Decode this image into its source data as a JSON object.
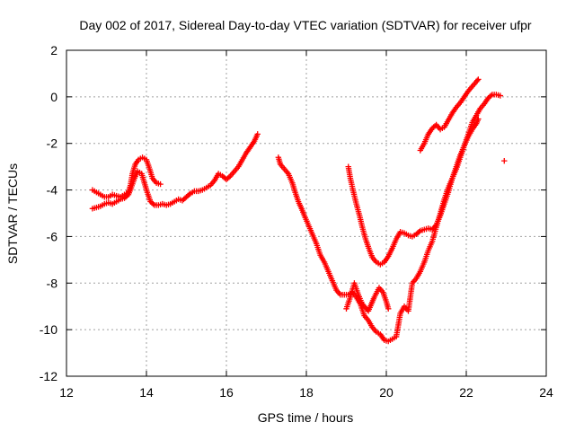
{
  "chart_data": {
    "type": "scatter",
    "title": "Day 002 of 2017, Sidereal Day-to-day VTEC variation (SDTVAR) for receiver ufpr",
    "xlabel": "GPS time / hours",
    "ylabel": "SDTVAR / TECUs",
    "xlim": [
      12,
      24
    ],
    "ylim": [
      -12,
      2
    ],
    "xticks": [
      "12",
      "14",
      "16",
      "18",
      "20",
      "22",
      "24"
    ],
    "yticks": [
      "-12",
      "-10",
      "-8",
      "-6",
      "-4",
      "-2",
      "0",
      "2"
    ],
    "grid": true,
    "marker": "plus",
    "series_color": "#ff0000",
    "series": [
      {
        "points": [
          [
            12.65,
            -4.0
          ],
          [
            12.75,
            -4.1
          ],
          [
            12.85,
            -4.2
          ],
          [
            12.95,
            -4.3
          ],
          [
            13.05,
            -4.3
          ],
          [
            13.15,
            -4.2
          ],
          [
            13.25,
            -4.25
          ],
          [
            13.35,
            -4.3
          ],
          [
            13.45,
            -4.2
          ],
          [
            13.55,
            -4.1
          ],
          [
            13.6,
            -3.8
          ],
          [
            13.65,
            -3.3
          ],
          [
            13.72,
            -2.9
          ],
          [
            13.8,
            -2.7
          ],
          [
            13.9,
            -2.6
          ],
          [
            14.0,
            -2.7
          ],
          [
            14.08,
            -3.1
          ],
          [
            14.15,
            -3.5
          ],
          [
            14.25,
            -3.7
          ],
          [
            14.35,
            -3.75
          ]
        ]
      },
      {
        "points": [
          [
            12.65,
            -4.8
          ],
          [
            12.75,
            -4.75
          ],
          [
            12.85,
            -4.7
          ],
          [
            12.95,
            -4.6
          ],
          [
            13.05,
            -4.55
          ],
          [
            13.15,
            -4.6
          ],
          [
            13.25,
            -4.5
          ],
          [
            13.35,
            -4.4
          ],
          [
            13.45,
            -4.35
          ],
          [
            13.55,
            -4.2
          ],
          [
            13.62,
            -3.9
          ],
          [
            13.7,
            -3.5
          ],
          [
            13.78,
            -3.2
          ],
          [
            13.88,
            -3.3
          ],
          [
            13.95,
            -3.7
          ],
          [
            14.02,
            -4.1
          ],
          [
            14.1,
            -4.5
          ],
          [
            14.2,
            -4.65
          ],
          [
            14.3,
            -4.65
          ],
          [
            14.4,
            -4.6
          ],
          [
            14.5,
            -4.65
          ],
          [
            14.6,
            -4.6
          ],
          [
            14.7,
            -4.5
          ],
          [
            14.8,
            -4.4
          ],
          [
            14.9,
            -4.45
          ],
          [
            15.0,
            -4.3
          ],
          [
            15.1,
            -4.15
          ],
          [
            15.2,
            -4.05
          ],
          [
            15.3,
            -4.05
          ],
          [
            15.4,
            -4.0
          ],
          [
            15.5,
            -3.9
          ],
          [
            15.6,
            -3.8
          ],
          [
            15.7,
            -3.6
          ],
          [
            15.8,
            -3.3
          ],
          [
            15.9,
            -3.4
          ],
          [
            16.0,
            -3.55
          ],
          [
            16.1,
            -3.4
          ],
          [
            16.2,
            -3.2
          ],
          [
            16.3,
            -3.0
          ],
          [
            16.4,
            -2.7
          ],
          [
            16.5,
            -2.4
          ],
          [
            16.6,
            -2.15
          ],
          [
            16.7,
            -1.9
          ],
          [
            16.78,
            -1.6
          ]
        ]
      },
      {
        "points": [
          [
            17.3,
            -2.6
          ],
          [
            17.35,
            -2.9
          ],
          [
            17.45,
            -3.1
          ],
          [
            17.55,
            -3.3
          ],
          [
            17.65,
            -3.7
          ],
          [
            17.72,
            -4.1
          ],
          [
            17.8,
            -4.5
          ],
          [
            17.88,
            -4.8
          ],
          [
            17.95,
            -5.1
          ],
          [
            18.05,
            -5.5
          ],
          [
            18.15,
            -5.9
          ],
          [
            18.25,
            -6.3
          ],
          [
            18.35,
            -6.8
          ],
          [
            18.45,
            -7.1
          ],
          [
            18.55,
            -7.5
          ],
          [
            18.65,
            -7.9
          ],
          [
            18.75,
            -8.3
          ],
          [
            18.85,
            -8.5
          ],
          [
            18.95,
            -8.5
          ],
          [
            19.05,
            -8.5
          ],
          [
            19.15,
            -8.4
          ],
          [
            19.25,
            -8.6
          ],
          [
            19.35,
            -8.9
          ],
          [
            19.45,
            -9.4
          ],
          [
            19.55,
            -9.6
          ],
          [
            19.65,
            -9.9
          ],
          [
            19.75,
            -10.1
          ],
          [
            19.85,
            -10.2
          ],
          [
            19.95,
            -10.45
          ],
          [
            20.05,
            -10.5
          ],
          [
            20.15,
            -10.4
          ],
          [
            20.25,
            -10.3
          ],
          [
            20.3,
            -9.8
          ],
          [
            20.35,
            -9.3
          ],
          [
            20.45,
            -9.0
          ],
          [
            20.55,
            -9.2
          ],
          [
            20.6,
            -8.6
          ],
          [
            20.65,
            -8.0
          ],
          [
            20.75,
            -7.8
          ],
          [
            20.85,
            -7.5
          ],
          [
            20.95,
            -7.1
          ],
          [
            21.05,
            -6.6
          ],
          [
            21.15,
            -6.2
          ],
          [
            21.25,
            -5.6
          ],
          [
            21.35,
            -5.0
          ],
          [
            21.45,
            -4.4
          ],
          [
            21.55,
            -3.9
          ],
          [
            21.65,
            -3.5
          ],
          [
            21.75,
            -3.1
          ],
          [
            21.85,
            -2.6
          ],
          [
            21.95,
            -2.1
          ],
          [
            22.05,
            -1.7
          ],
          [
            22.15,
            -1.4
          ],
          [
            22.25,
            -1.15
          ],
          [
            22.3,
            -0.95
          ]
        ]
      },
      {
        "points": [
          [
            19.05,
            -3.0
          ],
          [
            19.1,
            -3.5
          ],
          [
            19.18,
            -4.1
          ],
          [
            19.25,
            -4.6
          ],
          [
            19.33,
            -5.1
          ],
          [
            19.4,
            -5.6
          ],
          [
            19.48,
            -6.1
          ],
          [
            19.56,
            -6.5
          ],
          [
            19.65,
            -6.9
          ],
          [
            19.75,
            -7.1
          ],
          [
            19.85,
            -7.2
          ],
          [
            19.95,
            -7.1
          ],
          [
            20.05,
            -6.85
          ],
          [
            20.15,
            -6.5
          ],
          [
            20.25,
            -6.1
          ],
          [
            20.35,
            -5.8
          ],
          [
            20.45,
            -5.85
          ],
          [
            20.55,
            -5.95
          ],
          [
            20.65,
            -6.0
          ],
          [
            20.75,
            -5.9
          ],
          [
            20.85,
            -5.75
          ],
          [
            20.95,
            -5.7
          ],
          [
            21.05,
            -5.65
          ],
          [
            21.15,
            -5.7
          ],
          [
            21.25,
            -5.5
          ],
          [
            21.35,
            -5.1
          ],
          [
            21.45,
            -4.6
          ],
          [
            21.55,
            -4.1
          ],
          [
            21.65,
            -3.5
          ],
          [
            21.75,
            -3.0
          ],
          [
            21.85,
            -2.5
          ],
          [
            21.95,
            -2.1
          ],
          [
            22.05,
            -1.6
          ],
          [
            22.15,
            -1.1
          ],
          [
            22.25,
            -0.8
          ],
          [
            22.35,
            -0.5
          ],
          [
            22.45,
            -0.3
          ],
          [
            22.55,
            -0.05
          ],
          [
            22.65,
            0.1
          ],
          [
            22.75,
            0.1
          ],
          [
            22.85,
            0.05
          ],
          [
            22.95,
            -2.75
          ]
        ]
      },
      {
        "points": [
          [
            19.0,
            -9.1
          ],
          [
            19.1,
            -8.6
          ],
          [
            19.2,
            -8.0
          ],
          [
            19.3,
            -8.5
          ],
          [
            19.4,
            -8.9
          ],
          [
            19.55,
            -9.2
          ],
          [
            19.7,
            -8.6
          ],
          [
            19.82,
            -8.2
          ],
          [
            19.92,
            -8.4
          ],
          [
            20.0,
            -8.8
          ],
          [
            20.05,
            -9.1
          ]
        ]
      },
      {
        "points": [
          [
            20.85,
            -2.3
          ],
          [
            20.95,
            -2.0
          ],
          [
            21.05,
            -1.6
          ],
          [
            21.15,
            -1.35
          ],
          [
            21.25,
            -1.2
          ],
          [
            21.35,
            -1.4
          ],
          [
            21.45,
            -1.3
          ],
          [
            21.55,
            -1.0
          ],
          [
            21.65,
            -0.7
          ],
          [
            21.75,
            -0.45
          ],
          [
            21.85,
            -0.25
          ],
          [
            21.95,
            0.0
          ],
          [
            22.05,
            0.25
          ],
          [
            22.15,
            0.45
          ],
          [
            22.25,
            0.65
          ],
          [
            22.3,
            0.75
          ]
        ]
      }
    ]
  }
}
